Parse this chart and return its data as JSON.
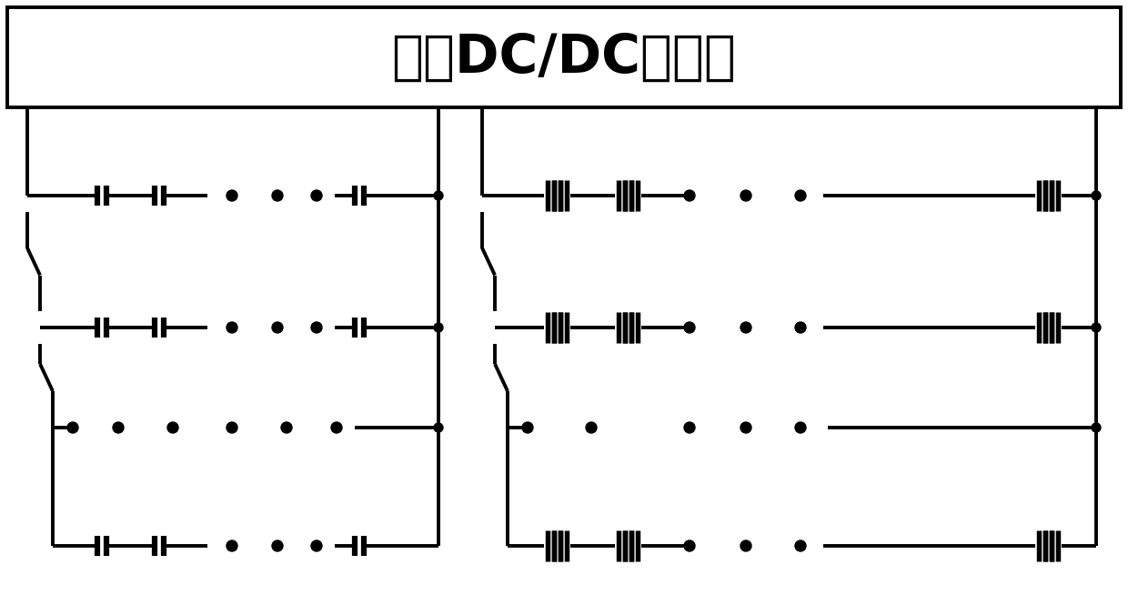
{
  "title": "双向DC/DC变换器",
  "title_fontsize": 42,
  "bg_color": "#ffffff",
  "line_color": "#000000",
  "lw": 2.8,
  "fig_width": 12.4,
  "fig_height": 6.76
}
